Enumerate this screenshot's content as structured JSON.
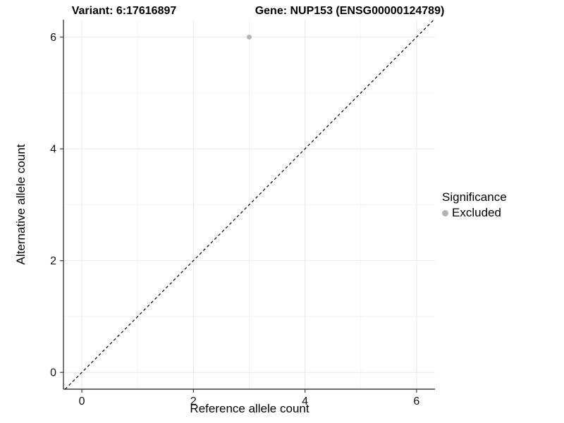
{
  "chart_data": {
    "type": "scatter",
    "titles": {
      "variant": "Variant: 6:17616897",
      "gene": "Gene: NUP153 (ENSG00000124789)"
    },
    "xlabel": "Reference allele count",
    "ylabel": "Alternative allele count",
    "xlim": [
      -0.33,
      6.33
    ],
    "ylim": [
      -0.3,
      6.31
    ],
    "x_ticks": [
      0,
      2,
      4,
      6
    ],
    "y_ticks": [
      0,
      2,
      4,
      6
    ],
    "x_minor_ticks": [
      1,
      3,
      5
    ],
    "y_minor_ticks": [
      1,
      3,
      5
    ],
    "grid": true,
    "reference_line": {
      "type": "identity",
      "style": "dashed",
      "color": "#000000"
    },
    "series": [
      {
        "name": "Excluded",
        "color": "#b3b3b3",
        "points": [
          {
            "x": 3,
            "y": 6
          }
        ]
      }
    ],
    "legend": {
      "title": "Significance",
      "position": "right",
      "items": [
        {
          "label": "Excluded",
          "color": "#b3b3b3"
        }
      ]
    },
    "style": {
      "point_color": "#b3b3b3",
      "grid_major_color": "#e8e8e8",
      "grid_minor_color": "#f2f2f2",
      "axis_line_color": "#3f3f3f",
      "background": "#ffffff"
    }
  }
}
